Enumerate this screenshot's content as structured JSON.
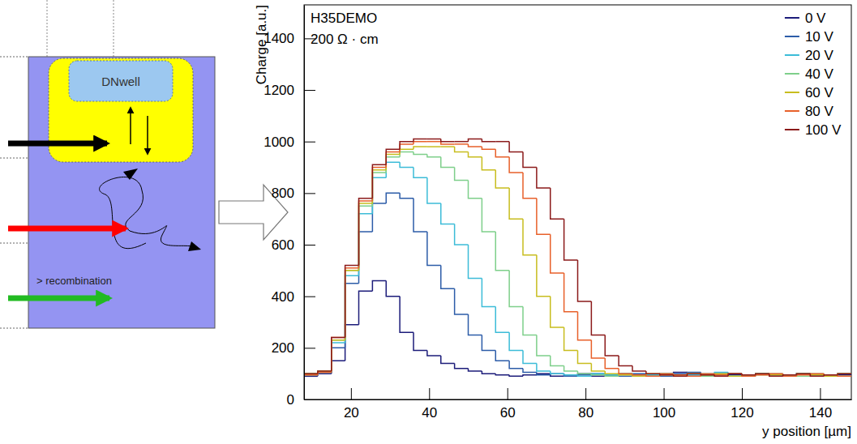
{
  "diagram": {
    "well_label": "DNwell",
    "region_label": "> recombination"
  },
  "chart_data": {
    "type": "histogram",
    "annotations": [
      "H35DEMO",
      "200 Ω · cm"
    ],
    "x_label": "y position [µm]",
    "y_label": "Charge [a.u.]",
    "bins": [
      8,
      11.5,
      15,
      18.5,
      22,
      25.5,
      29,
      32.5,
      36,
      39.5,
      43,
      46.5,
      50,
      53.5,
      57,
      60.5,
      64,
      67.5,
      71,
      74.5,
      78,
      81.5,
      85,
      88.5,
      92,
      95.5,
      99,
      102.5,
      106,
      109.5,
      113,
      116.5,
      120,
      123.5,
      127,
      130.5,
      134,
      137.5,
      141,
      144.5,
      148
    ],
    "series": [
      {
        "name": "0 V",
        "color": "#1c1c7a",
        "values": [
          90,
          100,
          150,
          290,
          420,
          460,
          400,
          260,
          190,
          170,
          140,
          120,
          110,
          100,
          95,
          90,
          95,
          100,
          90,
          95,
          100,
          90,
          95,
          100,
          90,
          95,
          100,
          105,
          95,
          90,
          100,
          95,
          90,
          100,
          95,
          90,
          100,
          95,
          90,
          95
        ]
      },
      {
        "name": "10 V",
        "color": "#2c5ca8",
        "values": [
          95,
          105,
          200,
          450,
          650,
          760,
          800,
          780,
          650,
          520,
          430,
          330,
          250,
          190,
          150,
          120,
          105,
          95,
          100,
          90,
          95,
          100,
          95,
          90,
          100,
          95,
          90,
          100,
          105,
          95,
          90,
          100,
          95,
          100,
          90,
          95,
          100,
          90,
          95,
          100
        ]
      },
      {
        "name": "20 V",
        "color": "#3cbcd8",
        "values": [
          100,
          110,
          220,
          480,
          720,
          860,
          920,
          900,
          860,
          760,
          680,
          600,
          470,
          360,
          260,
          190,
          140,
          110,
          100,
          95,
          90,
          100,
          95,
          100,
          90,
          95,
          100,
          90,
          95,
          100,
          105,
          90,
          95,
          100,
          90,
          95,
          100,
          95,
          90,
          100
        ]
      },
      {
        "name": "40 V",
        "color": "#7ecf8a",
        "values": [
          95,
          105,
          230,
          500,
          750,
          880,
          940,
          960,
          950,
          940,
          900,
          850,
          780,
          650,
          500,
          360,
          250,
          170,
          130,
          110,
          100,
          95,
          90,
          100,
          95,
          90,
          100,
          95,
          100,
          90,
          95,
          100,
          90,
          95,
          100,
          95,
          90,
          100,
          95,
          90
        ]
      },
      {
        "name": "60 V",
        "color": "#c8bd1e",
        "values": [
          100,
          110,
          230,
          500,
          760,
          890,
          950,
          970,
          980,
          980,
          980,
          960,
          940,
          890,
          820,
          700,
          560,
          400,
          280,
          190,
          140,
          110,
          100,
          95,
          90,
          100,
          95,
          90,
          100,
          95,
          100,
          90,
          95,
          100,
          95,
          90,
          100,
          95,
          90,
          100
        ]
      },
      {
        "name": "80 V",
        "color": "#e8602a",
        "values": [
          95,
          105,
          240,
          510,
          770,
          900,
          960,
          990,
          1000,
          1000,
          990,
          990,
          980,
          970,
          940,
          880,
          780,
          640,
          490,
          340,
          230,
          160,
          120,
          100,
          95,
          90,
          100,
          95,
          90,
          100,
          95,
          100,
          90,
          95,
          100,
          90,
          95,
          100,
          95,
          90
        ]
      },
      {
        "name": "100 V",
        "color": "#8b1a1a",
        "values": [
          100,
          110,
          240,
          520,
          780,
          910,
          970,
          1000,
          1010,
          1010,
          1000,
          1000,
          1010,
          1000,
          1000,
          960,
          900,
          820,
          700,
          540,
          380,
          250,
          170,
          130,
          110,
          100,
          95,
          90,
          100,
          95,
          90,
          100,
          95,
          100,
          90,
          95,
          100,
          90,
          95,
          100
        ]
      }
    ],
    "xlim": [
      8,
      148
    ],
    "ylim": [
      0,
      1530
    ],
    "xticks": [
      20,
      40,
      60,
      80,
      100,
      120,
      140
    ],
    "yticks": [
      0,
      200,
      400,
      600,
      800,
      1000,
      1200,
      1400
    ],
    "legend": "top-right",
    "grid": false
  }
}
